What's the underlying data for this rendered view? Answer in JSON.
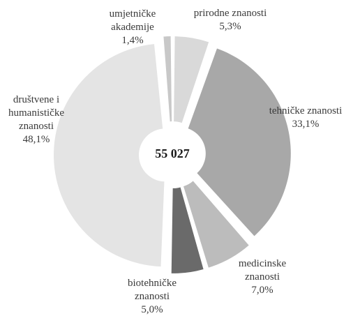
{
  "chart_data": {
    "type": "pie",
    "style": "donut-exploded",
    "center_label": "55 027",
    "slices": [
      {
        "label": [
          "prirodne znanosti"
        ],
        "value_label": "5,3%",
        "value": 5.3,
        "color": "#d9d9d9"
      },
      {
        "label": [
          "tehničke znanosti"
        ],
        "value_label": "33,1%",
        "value": 33.1,
        "color": "#a8a8a8"
      },
      {
        "label": [
          "medicinske",
          "znanosti"
        ],
        "value_label": "7,0%",
        "value": 7.0,
        "color": "#bcbcbc"
      },
      {
        "label": [
          "biotehničke",
          "znanosti"
        ],
        "value_label": "5,0%",
        "value": 5.0,
        "color": "#6a6a6a"
      },
      {
        "label": [
          "društvene i",
          "humanističke",
          "znanosti"
        ],
        "value_label": "48,1%",
        "value": 48.1,
        "color": "#e4e4e4"
      },
      {
        "label": [
          "umjetničke",
          "akademije"
        ],
        "value_label": "1,4%",
        "value": 1.4,
        "color": "#c8c8c8"
      }
    ]
  }
}
